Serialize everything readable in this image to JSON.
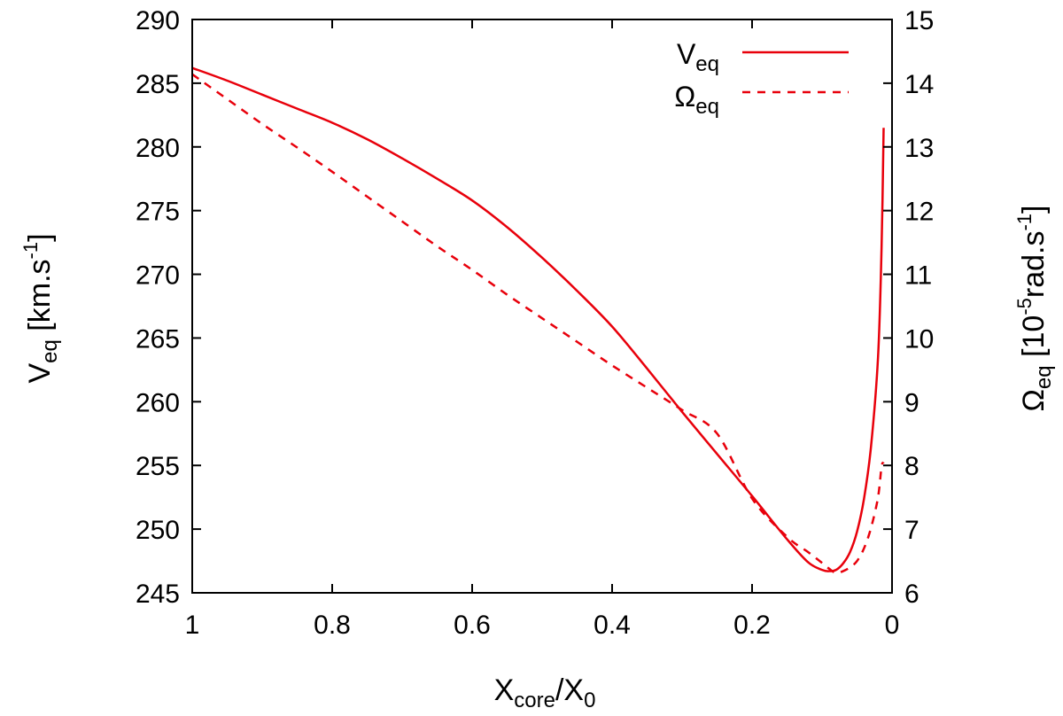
{
  "chart_data": {
    "type": "line",
    "x_axis": {
      "label_main": "X",
      "label_sub1": "core",
      "label_mid": "/X",
      "label_sub2": "0",
      "range": [
        1.0,
        0.0
      ],
      "reversed": true,
      "ticks": [
        1,
        0.8,
        0.6,
        0.4,
        0.2,
        0
      ],
      "tick_labels": [
        "1",
        "0.8",
        "0.6",
        "0.4",
        "0.2",
        "0"
      ]
    },
    "y_axis_left": {
      "label_main": "V",
      "label_sub": "eq",
      "label_unit_open": " [km.s",
      "label_sup": "-1",
      "label_close": "]",
      "range": [
        245,
        290
      ],
      "ticks": [
        245,
        250,
        255,
        260,
        265,
        270,
        275,
        280,
        285,
        290
      ],
      "tick_labels": [
        "245",
        "250",
        "255",
        "260",
        "265",
        "270",
        "275",
        "280",
        "285",
        "290"
      ]
    },
    "y_axis_right": {
      "label_main": "Ω",
      "label_sub": "eq",
      "label_unit_open": " [10",
      "label_sup": "-5",
      "label_unit_rest": "rad.s",
      "label_sup2": "-1",
      "label_close": "]",
      "range": [
        6,
        15
      ],
      "ticks": [
        6,
        7,
        8,
        9,
        10,
        11,
        12,
        13,
        14,
        15
      ],
      "tick_labels": [
        "6",
        "7",
        "8",
        "9",
        "10",
        "11",
        "12",
        "13",
        "14",
        "15"
      ]
    },
    "legend": {
      "position": "top-right",
      "entries": [
        {
          "main": "V",
          "sub": "eq",
          "style": "solid"
        },
        {
          "main": "Ω",
          "sub": "eq",
          "style": "dashed"
        }
      ]
    },
    "line_color": "#e8000b",
    "series": [
      {
        "name": "V_eq",
        "axis": "left",
        "style": "solid",
        "x": [
          1.0,
          0.95,
          0.9,
          0.85,
          0.8,
          0.75,
          0.7,
          0.65,
          0.6,
          0.55,
          0.5,
          0.45,
          0.4,
          0.35,
          0.3,
          0.25,
          0.2,
          0.15,
          0.12,
          0.1,
          0.09,
          0.08,
          0.07,
          0.06,
          0.05,
          0.04,
          0.03,
          0.02,
          0.015,
          0.012
        ],
        "y": [
          286.2,
          285.2,
          284.1,
          283.0,
          281.9,
          280.6,
          279.1,
          277.5,
          275.8,
          273.7,
          271.3,
          268.7,
          265.9,
          262.6,
          259.2,
          255.9,
          252.6,
          249.2,
          247.4,
          246.8,
          246.7,
          246.8,
          247.3,
          248.2,
          249.8,
          252.4,
          256.5,
          263.5,
          272.0,
          281.5
        ]
      },
      {
        "name": "Omega_eq",
        "axis": "right",
        "style": "dashed",
        "x": [
          1.0,
          0.95,
          0.9,
          0.85,
          0.8,
          0.75,
          0.7,
          0.65,
          0.6,
          0.55,
          0.5,
          0.45,
          0.4,
          0.35,
          0.3,
          0.25,
          0.2,
          0.15,
          0.12,
          0.1,
          0.09,
          0.08,
          0.07,
          0.06,
          0.05,
          0.04,
          0.03,
          0.02,
          0.015,
          0.012
        ],
        "y": [
          14.14,
          13.75,
          13.36,
          12.99,
          12.61,
          12.22,
          11.83,
          11.44,
          11.07,
          10.68,
          10.31,
          9.94,
          9.57,
          9.22,
          8.87,
          8.5,
          7.48,
          6.88,
          6.64,
          6.47,
          6.38,
          6.31,
          6.34,
          6.4,
          6.5,
          6.7,
          7.02,
          7.5,
          7.98,
          8.05
        ]
      }
    ]
  }
}
